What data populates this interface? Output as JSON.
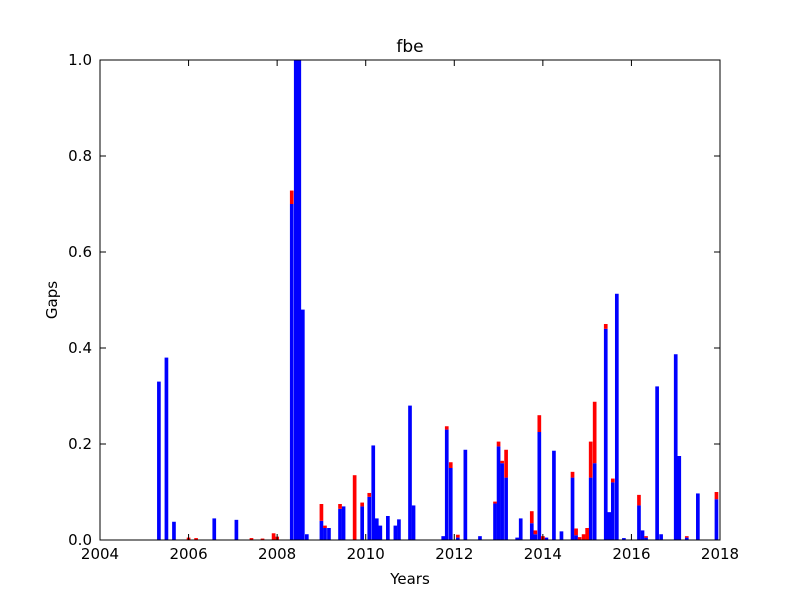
{
  "chart_data": {
    "type": "bar",
    "stacked": true,
    "title": "fbe",
    "xlabel": "Years",
    "ylabel": "Gaps",
    "xlim": [
      2004,
      2018
    ],
    "ylim": [
      0,
      1.0
    ],
    "xticks": [
      "2004",
      "2006",
      "2008",
      "2010",
      "2012",
      "2014",
      "2016",
      "2018"
    ],
    "yticks": [
      "0.0",
      "0.2",
      "0.4",
      "0.6",
      "0.8",
      "1.0"
    ],
    "grid": false,
    "bar_width_years": 0.083,
    "colors": {
      "blue": "#0000ff",
      "red": "#ff0000"
    },
    "series": [
      {
        "color": "#0000ff",
        "points": [
          {
            "x": 2005.33,
            "y": 0.33
          },
          {
            "x": 2005.5,
            "y": 0.38
          },
          {
            "x": 2005.67,
            "y": 0.038
          },
          {
            "x": 2006.58,
            "y": 0.045
          },
          {
            "x": 2007.08,
            "y": 0.042
          },
          {
            "x": 2008.33,
            "y": 0.7
          },
          {
            "x": 2008.42,
            "y": 1.0
          },
          {
            "x": 2008.5,
            "y": 1.0
          },
          {
            "x": 2008.58,
            "y": 0.48
          },
          {
            "x": 2008.67,
            "y": 0.012
          },
          {
            "x": 2009.0,
            "y": 0.04
          },
          {
            "x": 2009.08,
            "y": 0.025
          },
          {
            "x": 2009.17,
            "y": 0.025
          },
          {
            "x": 2009.42,
            "y": 0.065
          },
          {
            "x": 2009.5,
            "y": 0.07
          },
          {
            "x": 2009.92,
            "y": 0.07
          },
          {
            "x": 2010.08,
            "y": 0.09
          },
          {
            "x": 2010.17,
            "y": 0.197
          },
          {
            "x": 2010.25,
            "y": 0.045
          },
          {
            "x": 2010.33,
            "y": 0.03
          },
          {
            "x": 2010.5,
            "y": 0.05
          },
          {
            "x": 2010.67,
            "y": 0.03
          },
          {
            "x": 2010.75,
            "y": 0.043
          },
          {
            "x": 2011.0,
            "y": 0.28
          },
          {
            "x": 2011.08,
            "y": 0.072
          },
          {
            "x": 2011.75,
            "y": 0.008
          },
          {
            "x": 2011.83,
            "y": 0.23
          },
          {
            "x": 2011.92,
            "y": 0.15
          },
          {
            "x": 2012.08,
            "y": 0.005
          },
          {
            "x": 2012.25,
            "y": 0.188
          },
          {
            "x": 2012.58,
            "y": 0.008
          },
          {
            "x": 2012.92,
            "y": 0.076
          },
          {
            "x": 2013.0,
            "y": 0.195
          },
          {
            "x": 2013.08,
            "y": 0.16
          },
          {
            "x": 2013.17,
            "y": 0.13
          },
          {
            "x": 2013.42,
            "y": 0.005
          },
          {
            "x": 2013.5,
            "y": 0.045
          },
          {
            "x": 2013.75,
            "y": 0.035
          },
          {
            "x": 2013.83,
            "y": 0.012
          },
          {
            "x": 2013.92,
            "y": 0.225
          },
          {
            "x": 2014.08,
            "y": 0.005
          },
          {
            "x": 2014.25,
            "y": 0.186
          },
          {
            "x": 2014.42,
            "y": 0.018
          },
          {
            "x": 2014.67,
            "y": 0.13
          },
          {
            "x": 2014.75,
            "y": 0.01
          },
          {
            "x": 2015.08,
            "y": 0.13
          },
          {
            "x": 2015.17,
            "y": 0.16
          },
          {
            "x": 2015.42,
            "y": 0.44
          },
          {
            "x": 2015.5,
            "y": 0.058
          },
          {
            "x": 2015.58,
            "y": 0.12
          },
          {
            "x": 2015.67,
            "y": 0.513
          },
          {
            "x": 2015.83,
            "y": 0.004
          },
          {
            "x": 2016.17,
            "y": 0.072
          },
          {
            "x": 2016.25,
            "y": 0.02
          },
          {
            "x": 2016.33,
            "y": 0.005
          },
          {
            "x": 2016.58,
            "y": 0.32
          },
          {
            "x": 2016.67,
            "y": 0.012
          },
          {
            "x": 2017.0,
            "y": 0.387
          },
          {
            "x": 2017.08,
            "y": 0.175
          },
          {
            "x": 2017.25,
            "y": 0.005
          },
          {
            "x": 2017.5,
            "y": 0.097
          },
          {
            "x": 2017.92,
            "y": 0.085
          }
        ]
      },
      {
        "color": "#ff0000",
        "points": [
          {
            "x": 2006.0,
            "y": 0.005
          },
          {
            "x": 2006.17,
            "y": 0.004
          },
          {
            "x": 2007.42,
            "y": 0.004
          },
          {
            "x": 2007.67,
            "y": 0.003
          },
          {
            "x": 2007.92,
            "y": 0.014
          },
          {
            "x": 2008.0,
            "y": 0.007
          },
          {
            "x": 2008.33,
            "y": 0.028
          },
          {
            "x": 2009.0,
            "y": 0.035
          },
          {
            "x": 2009.08,
            "y": 0.005
          },
          {
            "x": 2009.42,
            "y": 0.01
          },
          {
            "x": 2009.75,
            "y": 0.135
          },
          {
            "x": 2009.92,
            "y": 0.008
          },
          {
            "x": 2010.08,
            "y": 0.008
          },
          {
            "x": 2011.83,
            "y": 0.007
          },
          {
            "x": 2011.92,
            "y": 0.012
          },
          {
            "x": 2012.08,
            "y": 0.006
          },
          {
            "x": 2012.92,
            "y": 0.004
          },
          {
            "x": 2013.0,
            "y": 0.01
          },
          {
            "x": 2013.08,
            "y": 0.005
          },
          {
            "x": 2013.17,
            "y": 0.058
          },
          {
            "x": 2013.75,
            "y": 0.025
          },
          {
            "x": 2013.83,
            "y": 0.008
          },
          {
            "x": 2013.92,
            "y": 0.035
          },
          {
            "x": 2014.0,
            "y": 0.008
          },
          {
            "x": 2014.67,
            "y": 0.012
          },
          {
            "x": 2014.75,
            "y": 0.014
          },
          {
            "x": 2014.83,
            "y": 0.006
          },
          {
            "x": 2014.92,
            "y": 0.012
          },
          {
            "x": 2015.0,
            "y": 0.025
          },
          {
            "x": 2015.08,
            "y": 0.075
          },
          {
            "x": 2015.17,
            "y": 0.128
          },
          {
            "x": 2015.42,
            "y": 0.01
          },
          {
            "x": 2015.58,
            "y": 0.008
          },
          {
            "x": 2016.17,
            "y": 0.022
          },
          {
            "x": 2016.33,
            "y": 0.003
          },
          {
            "x": 2017.25,
            "y": 0.003
          },
          {
            "x": 2017.92,
            "y": 0.015
          }
        ]
      }
    ]
  }
}
